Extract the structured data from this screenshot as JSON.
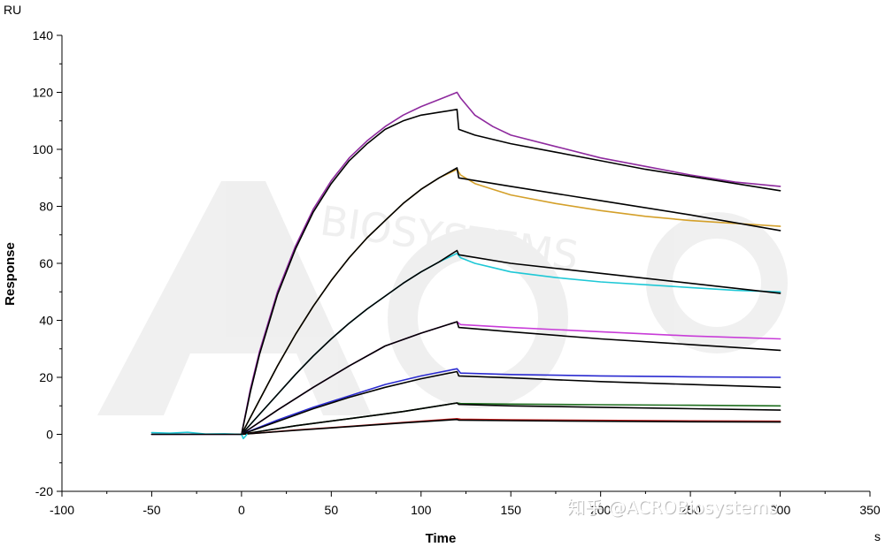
{
  "chart_data": {
    "type": "line",
    "title": "",
    "xlabel": "Time",
    "ylabel": "Response",
    "x_unit": "s",
    "y_unit": "RU",
    "xlim": [
      -100,
      350
    ],
    "ylim": [
      -20,
      140
    ],
    "x_ticks": [
      "-100",
      "-50",
      "0",
      "50",
      "100",
      "150",
      "200",
      "250",
      "300",
      "350"
    ],
    "y_ticks": [
      "-20",
      "0",
      "20",
      "40",
      "60",
      "80",
      "100",
      "120",
      "140"
    ],
    "grid": false,
    "legend": "none",
    "series": [
      {
        "color": "#8e2a9e",
        "x": [
          -50,
          -25,
          0,
          5,
          10,
          20,
          30,
          40,
          50,
          60,
          70,
          80,
          90,
          100,
          110,
          120,
          122,
          130,
          140,
          150,
          175,
          200,
          225,
          250,
          275,
          300
        ],
        "y": [
          0,
          0,
          0,
          16,
          29,
          50,
          66,
          79,
          89,
          97,
          103,
          108,
          112,
          115,
          117.5,
          120,
          118,
          112,
          108,
          105,
          101,
          97,
          94,
          91,
          88.5,
          87
        ]
      },
      {
        "color": "#000000",
        "x": [
          0,
          5,
          10,
          20,
          30,
          40,
          50,
          60,
          70,
          80,
          90,
          100,
          110,
          120,
          121,
          130,
          150,
          175,
          200,
          225,
          250,
          275,
          300
        ],
        "y": [
          0,
          15,
          28,
          49,
          65,
          78,
          88,
          96,
          102,
          107,
          110,
          112,
          113,
          114,
          107,
          105,
          102,
          99,
          96,
          93,
          90.5,
          88,
          85.5
        ]
      },
      {
        "color": "#d4a02a",
        "x": [
          0,
          10,
          20,
          30,
          40,
          50,
          60,
          70,
          80,
          90,
          100,
          110,
          120,
          122,
          130,
          140,
          150,
          175,
          200,
          225,
          250,
          275,
          300
        ],
        "y": [
          0,
          12,
          24,
          35,
          45,
          54,
          62,
          69,
          75,
          81,
          86,
          90,
          93,
          91,
          88,
          86,
          84,
          81,
          78.5,
          76.5,
          75,
          74,
          73
        ]
      },
      {
        "color": "#000000",
        "x": [
          0,
          10,
          20,
          30,
          40,
          50,
          60,
          70,
          80,
          90,
          100,
          110,
          120,
          121,
          150,
          200,
          250,
          300
        ],
        "y": [
          0,
          12,
          24,
          35,
          45,
          54,
          62,
          69,
          75,
          81,
          86,
          90,
          93.5,
          90,
          87,
          82,
          77,
          71.5
        ]
      },
      {
        "color": "#1ec8d6",
        "x": [
          0,
          10,
          20,
          30,
          40,
          50,
          60,
          70,
          80,
          90,
          100,
          110,
          120,
          122,
          130,
          140,
          150,
          175,
          200,
          225,
          250,
          275,
          300
        ],
        "y": [
          0,
          7,
          14,
          21,
          27.5,
          33.5,
          39,
          44,
          48.5,
          53,
          57,
          60.5,
          63.5,
          62,
          60,
          58.5,
          57,
          55,
          53.5,
          52.5,
          51.5,
          50.5,
          50
        ]
      },
      {
        "color": "#000000",
        "x": [
          0,
          10,
          20,
          30,
          40,
          50,
          60,
          70,
          80,
          90,
          100,
          110,
          120,
          121,
          150,
          200,
          250,
          300
        ],
        "y": [
          0,
          7,
          14,
          21,
          27.5,
          33.5,
          39,
          44,
          48.5,
          53,
          57,
          60.5,
          64.5,
          63,
          60,
          56.5,
          53,
          49.5
        ]
      },
      {
        "color": "#c83cd8",
        "x": [
          0,
          20,
          40,
          60,
          80,
          100,
          120,
          122,
          150,
          200,
          250,
          300
        ],
        "y": [
          0,
          8.5,
          16.5,
          24,
          31,
          35.5,
          39.5,
          38.5,
          37.5,
          36,
          34.5,
          33.5
        ]
      },
      {
        "color": "#000000",
        "x": [
          0,
          20,
          40,
          60,
          80,
          100,
          120,
          121,
          150,
          200,
          250,
          300
        ],
        "y": [
          0,
          8.5,
          16.5,
          24,
          31,
          35.5,
          39.5,
          37.5,
          36,
          33.5,
          31.5,
          29.5
        ]
      },
      {
        "color": "#2a2ad0",
        "x": [
          0,
          20,
          40,
          60,
          80,
          100,
          120,
          122,
          150,
          200,
          250,
          300
        ],
        "y": [
          0,
          5,
          9.5,
          13.5,
          17.5,
          20.5,
          23,
          21.5,
          21,
          20.5,
          20.2,
          20
        ]
      },
      {
        "color": "#000000",
        "x": [
          0,
          20,
          40,
          60,
          80,
          100,
          120,
          121,
          150,
          200,
          250,
          300
        ],
        "y": [
          0,
          4.5,
          9,
          13,
          16.5,
          19.5,
          22,
          20.5,
          19.8,
          18.5,
          17.5,
          16.5
        ]
      },
      {
        "color": "#1e6e1e",
        "x": [
          0,
          30,
          60,
          90,
          120,
          122,
          150,
          200,
          250,
          300
        ],
        "y": [
          0,
          3,
          5.5,
          8,
          11,
          10.8,
          10.6,
          10.4,
          10.2,
          10
        ]
      },
      {
        "color": "#000000",
        "x": [
          0,
          30,
          60,
          90,
          120,
          121,
          150,
          200,
          250,
          300
        ],
        "y": [
          0,
          3,
          5.5,
          8,
          11,
          10.5,
          10,
          9.5,
          9,
          8.5
        ]
      },
      {
        "color": "#c42020",
        "x": [
          0,
          30,
          60,
          90,
          120,
          122,
          150,
          200,
          250,
          300
        ],
        "y": [
          0,
          1.5,
          2.8,
          4.2,
          5.5,
          5.3,
          5.1,
          4.9,
          4.7,
          4.6
        ]
      },
      {
        "color": "#000000",
        "x": [
          0,
          30,
          60,
          90,
          120,
          121,
          150,
          200,
          250,
          300
        ],
        "y": [
          0,
          1.4,
          2.7,
          4,
          5.2,
          5,
          4.8,
          4.6,
          4.4,
          4.3
        ]
      },
      {
        "color": "#1ec8d6",
        "x": [
          -50,
          -40,
          -30,
          -20,
          -10,
          0,
          1,
          2,
          3
        ],
        "y": [
          0.6,
          0.4,
          0.7,
          0.1,
          0.2,
          0,
          -1.5,
          -0.8,
          0
        ]
      },
      {
        "color": "#000000",
        "x": [
          -50,
          0
        ],
        "y": [
          0,
          0
        ]
      }
    ]
  },
  "watermark": {
    "background_text": "BIOSYSTEMS",
    "footer_text": "知乎 @ACROBiosystems"
  }
}
